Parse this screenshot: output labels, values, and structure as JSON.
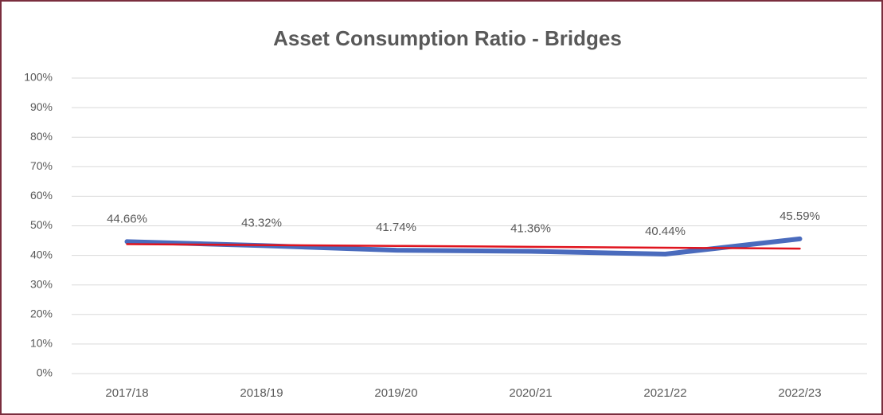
{
  "chart_data": {
    "type": "line",
    "title": "Asset Consumption Ratio - Bridges",
    "categories": [
      "2017/18",
      "2018/19",
      "2019/20",
      "2020/21",
      "2021/22",
      "2022/23"
    ],
    "series": [
      {
        "color": "#4a6bbd",
        "values": [
          44.66,
          43.32,
          41.74,
          41.36,
          40.44,
          45.59
        ],
        "value_labels": [
          "44.66%",
          "43.32%",
          "41.74%",
          "41.36%",
          "40.44%",
          "45.59%"
        ]
      },
      {
        "color": "#e0141e",
        "values": [
          43.8,
          43.5,
          43.2,
          42.9,
          42.6,
          42.3
        ]
      }
    ],
    "ylim": [
      0,
      100
    ],
    "yticks": [
      {
        "value": 0,
        "label": "0%"
      },
      {
        "value": 10,
        "label": "10%"
      },
      {
        "value": 20,
        "label": "20%"
      },
      {
        "value": 30,
        "label": "30%"
      },
      {
        "value": 40,
        "label": "40%"
      },
      {
        "value": 50,
        "label": "50%"
      },
      {
        "value": 60,
        "label": "60%"
      },
      {
        "value": 70,
        "label": "70%"
      },
      {
        "value": 80,
        "label": "80%"
      },
      {
        "value": 90,
        "label": "90%"
      },
      {
        "value": 100,
        "label": "100%"
      }
    ],
    "grid": true
  }
}
